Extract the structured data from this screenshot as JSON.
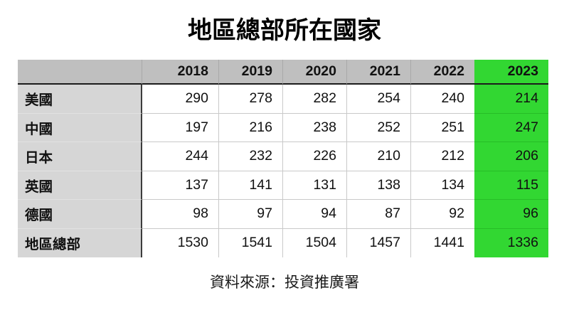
{
  "title": "地區總部所在國家",
  "footer": "資料來源：投資推廣署",
  "colors": {
    "highlight_green": "#32d732",
    "header_gray": "#bfbfbf",
    "label_gray": "#d6d6d6",
    "grid_line": "#c9c9c9",
    "header_underline": "#1c1c1c"
  },
  "chart_data": {
    "type": "table",
    "title": "地區總部所在國家",
    "columns": [
      "",
      "2018",
      "2019",
      "2020",
      "2021",
      "2022",
      "2023"
    ],
    "highlighted_column": "2023",
    "rows": [
      {
        "label": "美國",
        "values": [
          290,
          278,
          282,
          254,
          240,
          214
        ]
      },
      {
        "label": "中國",
        "values": [
          197,
          216,
          238,
          252,
          251,
          247
        ]
      },
      {
        "label": "日本",
        "values": [
          244,
          232,
          226,
          210,
          212,
          206
        ]
      },
      {
        "label": "英國",
        "values": [
          137,
          141,
          131,
          138,
          134,
          115
        ]
      },
      {
        "label": "德國",
        "values": [
          98,
          97,
          94,
          87,
          92,
          96
        ]
      },
      {
        "label": "地區總部",
        "values": [
          1530,
          1541,
          1504,
          1457,
          1441,
          1336
        ]
      }
    ],
    "source": "資料來源：投資推廣署"
  }
}
